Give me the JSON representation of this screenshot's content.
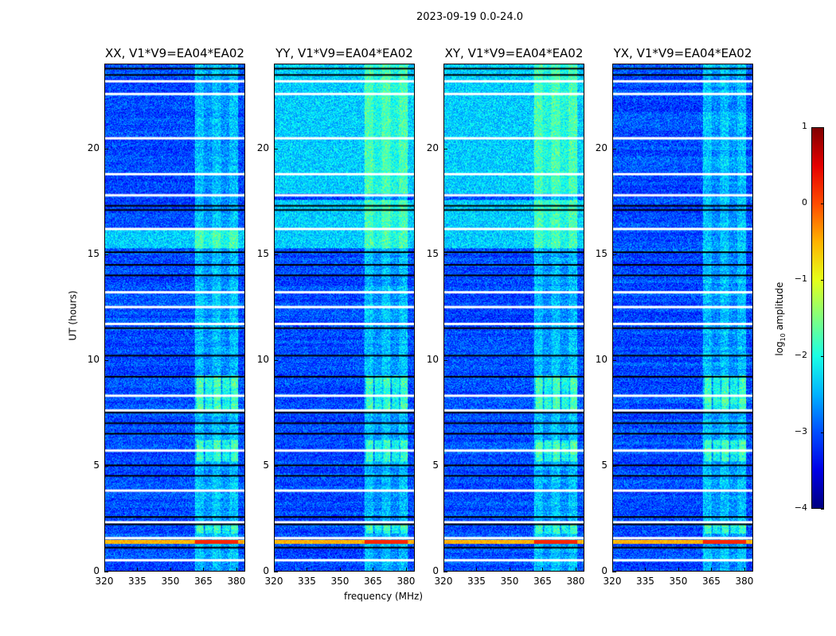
{
  "chart_data": {
    "type": "heatmap",
    "title": "2023-09-19 0.0-24.0",
    "xlabel": "frequency (MHz)",
    "ylabel": "UT (hours)",
    "xlim": [
      320,
      384
    ],
    "ylim": [
      0,
      24
    ],
    "xticks": [
      "320",
      "335",
      "350",
      "365",
      "380"
    ],
    "xtick_values": [
      320,
      335,
      350,
      365,
      380
    ],
    "yticks": [
      "0",
      "5",
      "10",
      "15",
      "20"
    ],
    "ytick_values": [
      0,
      5,
      10,
      15,
      20
    ],
    "panels": [
      {
        "title": "XX, V1*V9=EA04*EA02",
        "base_log_amp": -3.0,
        "bright_ranges_ut": [
          [
            15.3,
            16.2
          ]
        ]
      },
      {
        "title": "YY, V1*V9=EA04*EA02",
        "base_log_amp": -3.0,
        "bright_ranges_ut": [
          [
            15.3,
            17.6
          ],
          [
            17.9,
            24
          ]
        ]
      },
      {
        "title": "XY, V1*V9=EA04*EA02",
        "base_log_amp": -3.0,
        "bright_ranges_ut": [
          [
            15.3,
            17.6
          ],
          [
            17.9,
            24
          ]
        ]
      },
      {
        "title": "YX, V1*V9=EA04*EA02",
        "base_log_amp": -3.0,
        "bright_ranges_ut": []
      }
    ],
    "rfi_band_mhz": [
      361,
      381
    ],
    "strong_rfi_ut": [
      1.3,
      1.5
    ],
    "flagged_white_ut": [
      0.5,
      1.55,
      2.3,
      3.8,
      5.7,
      7.6,
      8.3,
      11.7,
      12.5,
      13.2,
      16.2,
      17.8,
      18.8,
      20.5,
      22.6,
      23.2
    ],
    "flagged_black_ut": [
      1.1,
      2.2,
      2.55,
      4.5,
      5.0,
      6.5,
      7.0,
      7.5,
      9.2,
      10.2,
      11.5,
      14.0,
      14.5,
      15.1,
      17.1,
      17.3,
      23.5,
      23.8
    ],
    "colorbar": {
      "label": "log10 amplitude",
      "label_main": "log",
      "label_sub": "10",
      "label_rest": " amplitude",
      "range": [
        -4,
        1
      ],
      "ticks": [
        "1",
        "0",
        "−1",
        "−2",
        "−3",
        "−4"
      ],
      "tick_values": [
        1,
        0,
        -1,
        -2,
        -3,
        -4
      ],
      "colormap": "jet"
    }
  }
}
